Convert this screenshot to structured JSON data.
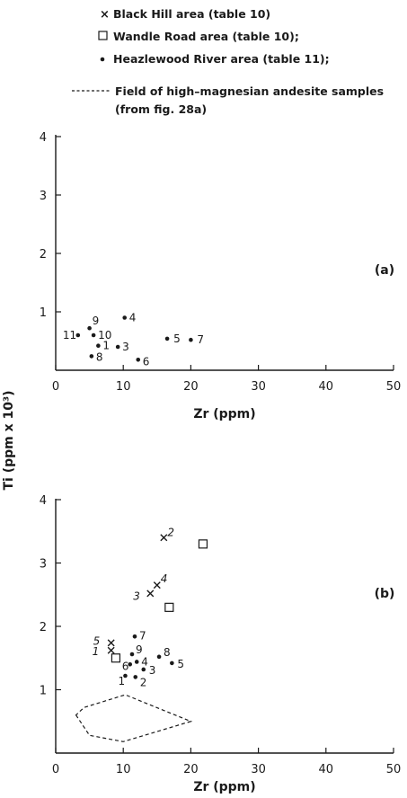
{
  "legend": {
    "black_hill": "Black Hill area (table 10)",
    "wandle_road": "Wandle Road area (table 10);",
    "heazlewood": "Heazlewood River area (table 11);",
    "field_line1": "Field of high–magnesian andesite samples",
    "field_line2": "(from fig. 28a)"
  },
  "colors": {
    "ink": "#1a1a1a"
  },
  "chart_data": [
    {
      "type": "scatter",
      "panel_label": "(a)",
      "xlabel": "Zr  (ppm)",
      "ylabel": "",
      "xlim": [
        0,
        50
      ],
      "ylim": [
        0,
        4
      ],
      "x_ticks": [
        "0",
        "10",
        "20",
        "30",
        "40",
        "50"
      ],
      "y_ticks": [
        "1",
        "2",
        "3",
        "4"
      ],
      "series": [
        {
          "name": "Heazlewood River area (table 11);",
          "marker": "dot",
          "points": [
            {
              "label": "1",
              "x": 6.3,
              "y": 0.42
            },
            {
              "label": "3",
              "x": 9.2,
              "y": 0.4
            },
            {
              "label": "4",
              "x": 10.2,
              "y": 0.9
            },
            {
              "label": "5",
              "x": 16.5,
              "y": 0.54
            },
            {
              "label": "6",
              "x": 12.2,
              "y": 0.18
            },
            {
              "label": "7",
              "x": 20.0,
              "y": 0.52
            },
            {
              "label": "8",
              "x": 5.3,
              "y": 0.24
            },
            {
              "label": "9",
              "x": 5.0,
              "y": 0.72
            },
            {
              "label": "10",
              "x": 5.6,
              "y": 0.6
            },
            {
              "label": "11",
              "x": 3.3,
              "y": 0.6
            }
          ]
        }
      ]
    },
    {
      "type": "scatter",
      "panel_label": "(b)",
      "xlabel": "Zr  (ppm)",
      "ylabel": "Ti  (ppm x 10³)",
      "xlim": [
        0,
        50
      ],
      "ylim": [
        0,
        4
      ],
      "x_ticks": [
        "0",
        "10",
        "20",
        "30",
        "40",
        "50"
      ],
      "y_ticks": [
        "1",
        "2",
        "3",
        "4"
      ],
      "series": [
        {
          "name": "Black Hill area (table 10)",
          "marker": "cross",
          "points": [
            {
              "label": "1",
              "x": 8.2,
              "y": 1.62
            },
            {
              "label": "2",
              "x": 16.0,
              "y": 3.4
            },
            {
              "label": "3",
              "x": 14.0,
              "y": 2.52
            },
            {
              "label": "4",
              "x": 15.0,
              "y": 2.65
            },
            {
              "label": "5",
              "x": 8.2,
              "y": 1.74
            }
          ]
        },
        {
          "name": "Wandle Road area (table 10);",
          "marker": "square",
          "points": [
            {
              "x": 21.8,
              "y": 3.3
            },
            {
              "x": 16.8,
              "y": 2.3
            },
            {
              "x": 8.9,
              "y": 1.5
            }
          ]
        },
        {
          "name": "Heazlewood River area (table 11);",
          "marker": "dot",
          "points": [
            {
              "label": "1",
              "x": 10.3,
              "y": 1.22
            },
            {
              "label": "2",
              "x": 11.8,
              "y": 1.2
            },
            {
              "label": "3",
              "x": 13.0,
              "y": 1.32
            },
            {
              "label": "4",
              "x": 12.0,
              "y": 1.44
            },
            {
              "label": "5",
              "x": 17.2,
              "y": 1.42
            },
            {
              "label": "6",
              "x": 11.0,
              "y": 1.4
            },
            {
              "label": "7",
              "x": 11.7,
              "y": 1.84
            },
            {
              "label": "8",
              "x": 15.3,
              "y": 1.52
            },
            {
              "label": "9",
              "x": 11.3,
              "y": 1.56
            }
          ]
        }
      ],
      "field_polygon": {
        "name": "Field of high–magnesian andesite samples",
        "points": [
          [
            3,
            0.6
          ],
          [
            5,
            0.28
          ],
          [
            10,
            0.18
          ],
          [
            20,
            0.5
          ],
          [
            10.3,
            0.92
          ],
          [
            4.2,
            0.72
          ]
        ]
      }
    }
  ]
}
